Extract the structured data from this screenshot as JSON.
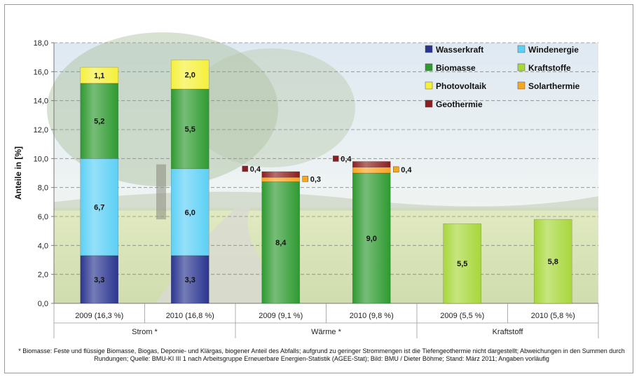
{
  "chart_data": {
    "type": "bar",
    "stacked": true,
    "ylabel": "Anteile in [%]",
    "ylim": [
      0,
      18
    ],
    "yticks": [
      "0,0",
      "2,0",
      "4,0",
      "6,0",
      "8,0",
      "10,0",
      "12,0",
      "14,0",
      "16,0",
      "18,0"
    ],
    "grid": true,
    "legend_position": "top-right",
    "series": [
      {
        "name": "Wasserkraft",
        "color": "#2a3590"
      },
      {
        "name": "Windenergie",
        "color": "#5cd0f5"
      },
      {
        "name": "Biomasse",
        "color": "#2e9a30"
      },
      {
        "name": "Kraftstoffe",
        "color": "#a7d73a"
      },
      {
        "name": "Photovoltaik",
        "color": "#f5f03a"
      },
      {
        "name": "Solarthermie",
        "color": "#f5a623"
      },
      {
        "name": "Geothermie",
        "color": "#8b1f1f"
      }
    ],
    "groups": [
      {
        "label": "Strom *",
        "bars": [
          {
            "label": "2009 (16,3 %)",
            "segments": [
              {
                "series": "Wasserkraft",
                "value": 3.3,
                "text": "3,3"
              },
              {
                "series": "Windenergie",
                "value": 6.7,
                "text": "6,7"
              },
              {
                "series": "Biomasse",
                "value": 5.2,
                "text": "5,2"
              },
              {
                "series": "Photovoltaik",
                "value": 1.1,
                "text": "1,1"
              }
            ]
          },
          {
            "label": "2010 (16,8 %)",
            "segments": [
              {
                "series": "Wasserkraft",
                "value": 3.3,
                "text": "3,3"
              },
              {
                "series": "Windenergie",
                "value": 6.0,
                "text": "6,0"
              },
              {
                "series": "Biomasse",
                "value": 5.5,
                "text": "5,5"
              },
              {
                "series": "Photovoltaik",
                "value": 2.0,
                "text": "2,0"
              }
            ]
          }
        ]
      },
      {
        "label": "Wärme *",
        "bars": [
          {
            "label": "2009 (9,1 %)",
            "segments": [
              {
                "series": "Biomasse",
                "value": 8.4,
                "text": "8,4"
              },
              {
                "series": "Solarthermie",
                "value": 0.3,
                "text": "0,3"
              },
              {
                "series": "Geothermie",
                "value": 0.4,
                "text": "0,4"
              }
            ]
          },
          {
            "label": "2010 (9,8 %)",
            "segments": [
              {
                "series": "Biomasse",
                "value": 9.0,
                "text": "9,0"
              },
              {
                "series": "Solarthermie",
                "value": 0.4,
                "text": "0,4"
              },
              {
                "series": "Geothermie",
                "value": 0.4,
                "text": "0,4"
              }
            ]
          }
        ]
      },
      {
        "label": "Kraftstoff",
        "bars": [
          {
            "label": "2009 (5,5 %)",
            "segments": [
              {
                "series": "Kraftstoffe",
                "value": 5.5,
                "text": "5,5"
              }
            ]
          },
          {
            "label": "2010 (5,8 %)",
            "segments": [
              {
                "series": "Kraftstoffe",
                "value": 5.8,
                "text": "5,8"
              }
            ]
          }
        ]
      }
    ]
  },
  "footnote": "* Biomasse: Feste und flüssige Biomasse, Biogas, Deponie- und Klärgas, biogener Anteil des Abfalls; aufgrund zu geringer Strommengen ist die Tiefengeothermie nicht dargestellt; Abweichungen in den Summen durch Rundungen; Quelle: BMU-KI III 1 nach Arbeitsgruppe Erneuerbare Energien-Statistik (AGEE-Stat); Bild: BMU / Dieter Böhme; Stand: März 2011; Angaben vorläufig"
}
